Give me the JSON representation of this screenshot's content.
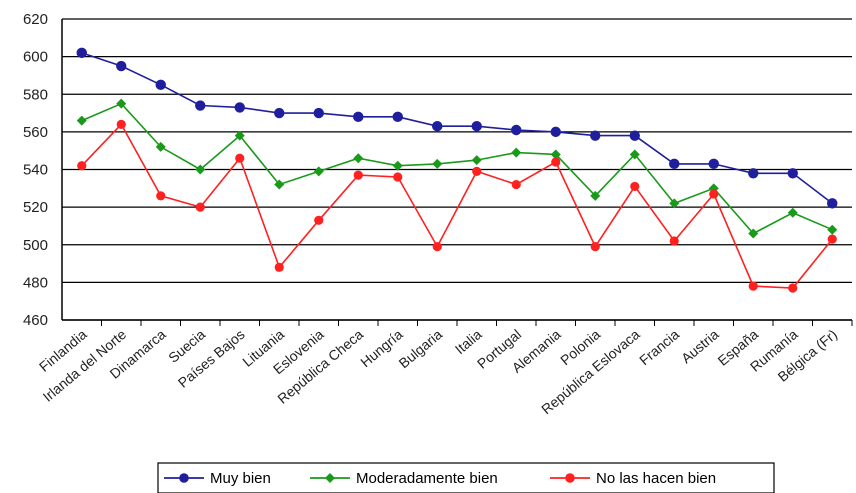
{
  "chart_data": {
    "type": "line",
    "categories": [
      "Finlandia",
      "Irlanda del Norte",
      "Dinamarca",
      "Suecia",
      "Países Bajos",
      "Lituania",
      "Eslovenia",
      "República Checa",
      "Hungría",
      "Bulgaria",
      "Italia",
      "Portugal",
      "Alemania",
      "Polonia",
      "República Eslovaca",
      "Francia",
      "Austria",
      "España",
      "Rumanía",
      "Bélgica (Fr)"
    ],
    "series": [
      {
        "name": "Muy bien",
        "color": "#1f1f9e",
        "marker": "circle",
        "values": [
          602,
          595,
          585,
          574,
          573,
          570,
          570,
          568,
          568,
          563,
          563,
          561,
          560,
          558,
          558,
          543,
          543,
          538,
          538,
          522
        ]
      },
      {
        "name": "Moderadamente bien",
        "color": "#1a9a1a",
        "marker": "diamond",
        "values": [
          566,
          575,
          552,
          540,
          558,
          532,
          539,
          546,
          542,
          543,
          545,
          549,
          548,
          526,
          548,
          522,
          530,
          506,
          517,
          508
        ]
      },
      {
        "name": "No las hacen bien",
        "color": "#ff2020",
        "marker": "circle",
        "values": [
          542,
          564,
          526,
          520,
          546,
          488,
          513,
          537,
          536,
          499,
          539,
          532,
          544,
          499,
          531,
          502,
          527,
          478,
          477,
          503
        ]
      }
    ],
    "ylim": [
      460,
      620
    ],
    "yticks": [
      460,
      480,
      500,
      520,
      540,
      560,
      580,
      600,
      620
    ],
    "grid": true,
    "legend_position": "bottom"
  }
}
